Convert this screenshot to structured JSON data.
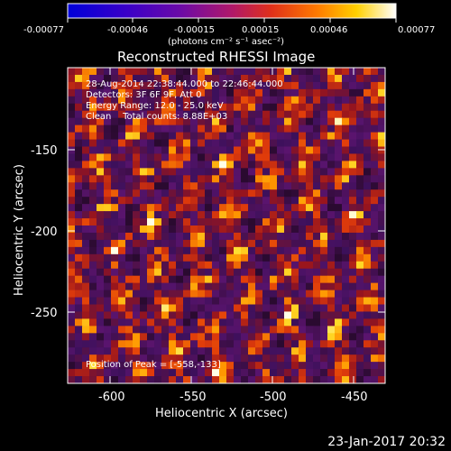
{
  "colorbar": {
    "tick_labels": [
      "-0.00077",
      "-0.00046",
      "-0.00015",
      "0.00015",
      "0.00046",
      "0.00077"
    ],
    "units": "(photons cm⁻² s⁻¹ asec⁻²)",
    "range": [
      -0.00077,
      0.00077
    ],
    "colors": [
      "#0000d8",
      "#ffffff"
    ]
  },
  "image": {
    "title": "Reconstructed RHESSI Image",
    "info_lines": [
      "28-Aug-2014 22:38:44.000 to 22:46:44.000",
      "Detectors: 3F 6F 9F, Att 0",
      "Energy Range: 12.0 - 25.0 keV",
      "Clean    Total counts: 8.88E+03"
    ],
    "peak_label": "Position of Peak = [-558,-133]"
  },
  "axes": {
    "xlabel": "Heliocentric X (arcsec)",
    "ylabel": "Heliocentric Y (arcsec)",
    "x_ticks": [
      "-600",
      "-550",
      "-500",
      "-450"
    ],
    "y_ticks": [
      "-150",
      "-200",
      "-250"
    ],
    "x_range": [
      -624,
      -429
    ],
    "y_range": [
      -293,
      -98
    ]
  },
  "timestamp": "23-Jan-2017 20:32"
}
